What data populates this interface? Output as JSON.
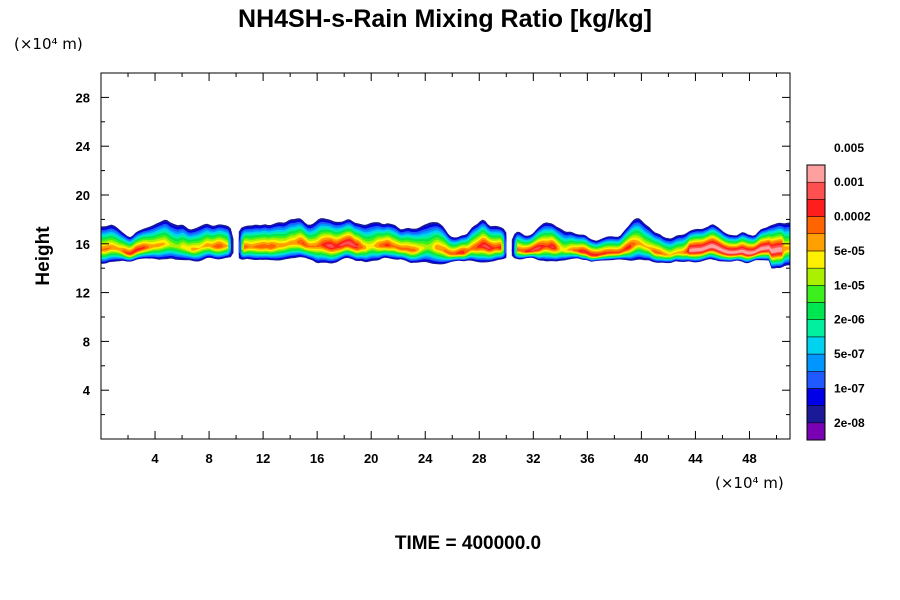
{
  "chart_data": {
    "type": "heatmap",
    "title": "NH4SH-s-Rain Mixing Ratio [kg/kg]",
    "ylabel": "Height",
    "y_unit": "(×10⁴ m)",
    "x_unit": "(×10⁴ m)",
    "xlim": [
      0,
      51
    ],
    "ylim": [
      0,
      30
    ],
    "x_ticks": [
      4,
      8,
      12,
      16,
      20,
      24,
      28,
      32,
      36,
      40,
      44,
      48
    ],
    "y_ticks": [
      4,
      8,
      12,
      16,
      20,
      24,
      28
    ],
    "footer": "TIME = 400000.0",
    "colorbar": {
      "colors": [
        "#7a00b4",
        "#1a1a96",
        "#0000e6",
        "#1e5aff",
        "#0096ff",
        "#00d2f0",
        "#00f0a0",
        "#00e650",
        "#3cf01e",
        "#aaf000",
        "#fff000",
        "#ffa000",
        "#ff6400",
        "#ff1e1e",
        "#ff5050",
        "#ffa0a0"
      ],
      "labels": [
        "2e-08",
        "1e-07",
        "5e-07",
        "2e-06",
        "1e-05",
        "5e-05",
        "0.0002",
        "0.001",
        "0.005"
      ]
    },
    "cloud_layer": {
      "base_height": 14.5,
      "top_height": 19.5,
      "gaps_x": [
        [
          9.7,
          10.2
        ],
        [
          30.0,
          30.5
        ]
      ],
      "max_value_region_x": [
        43.5,
        50.5
      ],
      "max_value_region_height": [
        14.5,
        16.0
      ]
    }
  }
}
